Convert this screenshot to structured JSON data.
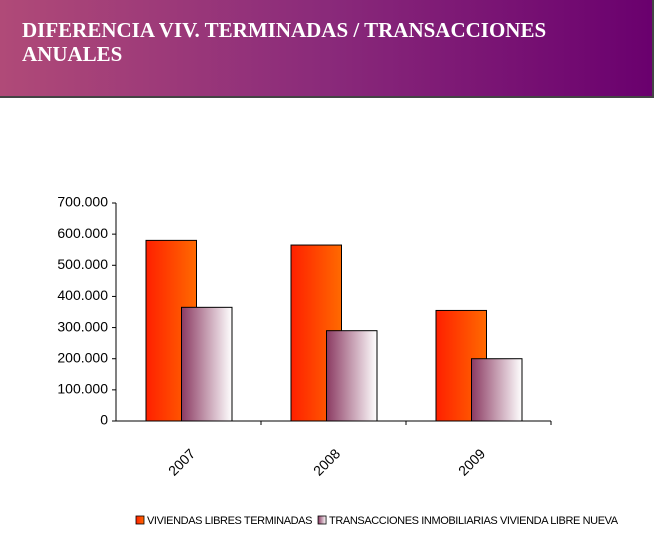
{
  "chart_data": {
    "type": "bar",
    "title": "DIFERENCIA VIV. TERMINADAS / TRANSACCIONES ANUALES",
    "categories": [
      "2007",
      "2008",
      "2009"
    ],
    "series": [
      {
        "name": "VIVIENDAS LIBRES TERMINADAS",
        "color": "#ff6a00",
        "values": [
          580000,
          565000,
          355000
        ]
      },
      {
        "name": "TRANSACCIONES INMOBILIARIAS VIVIENDA LIBRE NUEVA",
        "color": "#8b3a62",
        "values": [
          365000,
          290000,
          200000
        ]
      }
    ],
    "ylim": [
      0,
      700000
    ],
    "yticks": [
      0,
      {
        "value": 100000,
        "label": "100.000"
      },
      {
        "value": 200000,
        "label": "200.000"
      },
      {
        "value": 300000,
        "label": "300.000"
      },
      {
        "value": 400000,
        "label": "400.000"
      },
      {
        "value": 500000,
        "label": "500.000"
      },
      {
        "value": 600000,
        "label": "600.000"
      },
      {
        "value": 700000,
        "label": "700.000"
      }
    ]
  }
}
